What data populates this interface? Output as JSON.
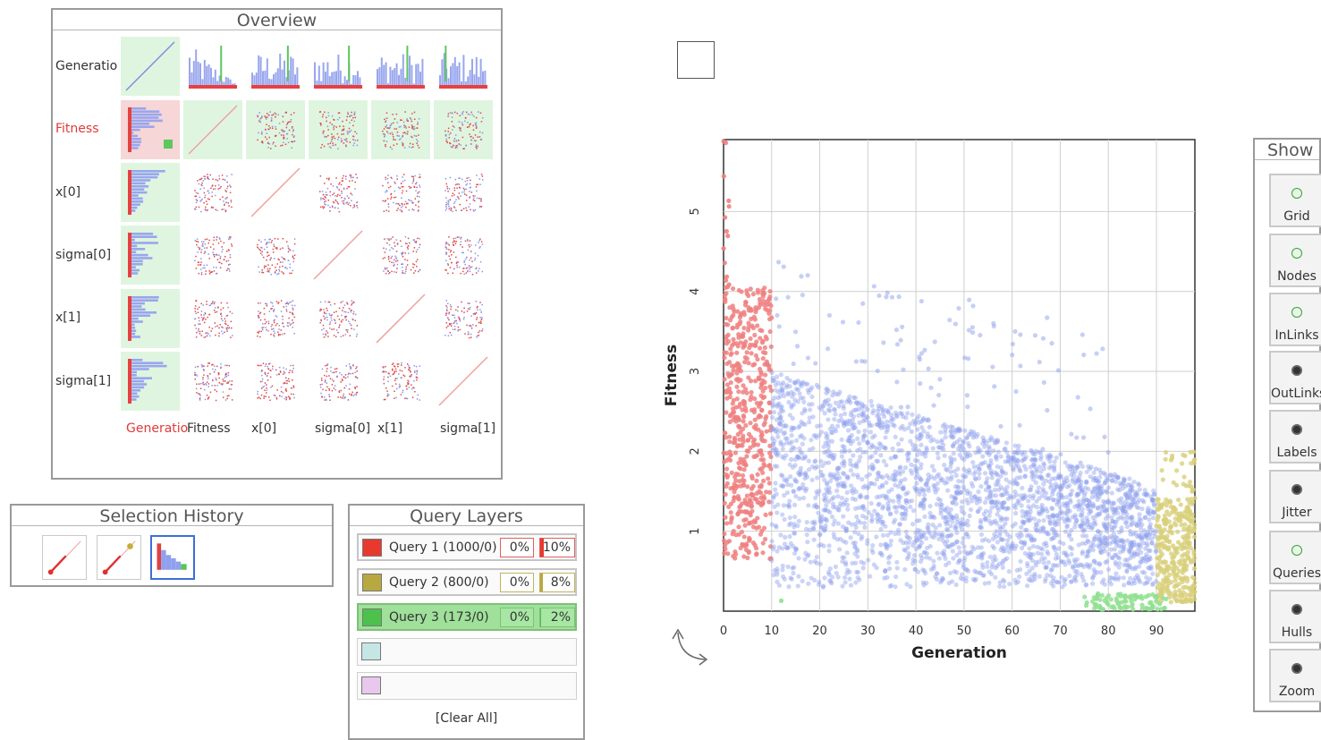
{
  "overview": {
    "title": "Overview",
    "row_labels": [
      {
        "text": "Generatio",
        "color": "#333333"
      },
      {
        "text": "Fitness",
        "color": "#e03a3a"
      },
      {
        "text": "x[0]",
        "color": "#333333"
      },
      {
        "text": "sigma[0]",
        "color": "#333333"
      },
      {
        "text": "x[1]",
        "color": "#333333"
      },
      {
        "text": "sigma[1]",
        "color": "#333333"
      }
    ],
    "col_labels": [
      {
        "text": "Generatio",
        "color": "#e03a3a"
      },
      {
        "text": "Fitness",
        "color": "#333333"
      },
      {
        "text": "x[0]",
        "color": "#333333"
      },
      {
        "text": "sigma[0]",
        "color": "#333333"
      },
      {
        "text": "x[1]",
        "color": "#333333"
      },
      {
        "text": "sigma[1]",
        "color": "#333333"
      }
    ]
  },
  "selection_history": {
    "title": "Selection History",
    "thumbnails": [
      "diagonal-red",
      "diagonal-olive",
      "histogram-blue"
    ]
  },
  "query_layers": {
    "title": "Query Layers",
    "queries": [
      {
        "label": "Query 1 (1000/0)",
        "color": "#e8392f",
        "pct_a": "0%",
        "pct_b": "10%",
        "pct_b_value": 0.1
      },
      {
        "label": "Query 2 (800/0)",
        "color": "#b8a840",
        "pct_a": "0%",
        "pct_b": "8%",
        "pct_b_value": 0.08
      },
      {
        "label": "Query 3 (173/0)",
        "color": "#4cc24c",
        "pct_a": "0%",
        "pct_b": "2%",
        "pct_b_value": 0.02
      }
    ],
    "empty_layer_colors": [
      "#c6e6e6",
      "#e8c8ec"
    ],
    "clear_label": "[Clear All]"
  },
  "show_panel": {
    "title": "Show",
    "buttons": [
      {
        "label": "Grid",
        "state": "off"
      },
      {
        "label": "Nodes",
        "state": "off"
      },
      {
        "label": "InLinks",
        "state": "off"
      },
      {
        "label": "OutLinks",
        "state": "on"
      },
      {
        "label": "Labels",
        "state": "on"
      },
      {
        "label": "Jitter",
        "state": "on"
      },
      {
        "label": "Queries",
        "state": "off"
      },
      {
        "label": "Hulls",
        "state": "on"
      },
      {
        "label": "Zoom",
        "state": "on"
      }
    ]
  },
  "chart_data": {
    "type": "scatter",
    "xlabel": "Generation",
    "ylabel": "Fitness",
    "xlim": [
      0,
      98
    ],
    "ylim": [
      0,
      5.9
    ],
    "x_ticks": [
      0,
      10,
      20,
      30,
      40,
      50,
      60,
      70,
      80,
      90
    ],
    "y_ticks": [
      1,
      2,
      3,
      4,
      5
    ],
    "grid": true,
    "colors": {
      "red": "#f08080",
      "blue": "#8fa0ee",
      "olive": "#d8d07a",
      "green": "#90e090"
    },
    "series": [
      {
        "color": "red",
        "x_range": [
          0,
          10
        ],
        "y_range": [
          0.6,
          4.1
        ]
      },
      {
        "color": "blue",
        "x_range": [
          10,
          90
        ],
        "y_range": [
          0.25,
          4.5
        ],
        "trend": "decreasing"
      },
      {
        "color": "olive",
        "x_range": [
          90,
          98
        ],
        "y_range": [
          0.1,
          2.0
        ]
      },
      {
        "color": "green",
        "x_range": [
          75,
          92
        ],
        "y_range": [
          0.0,
          0.25
        ]
      }
    ]
  }
}
